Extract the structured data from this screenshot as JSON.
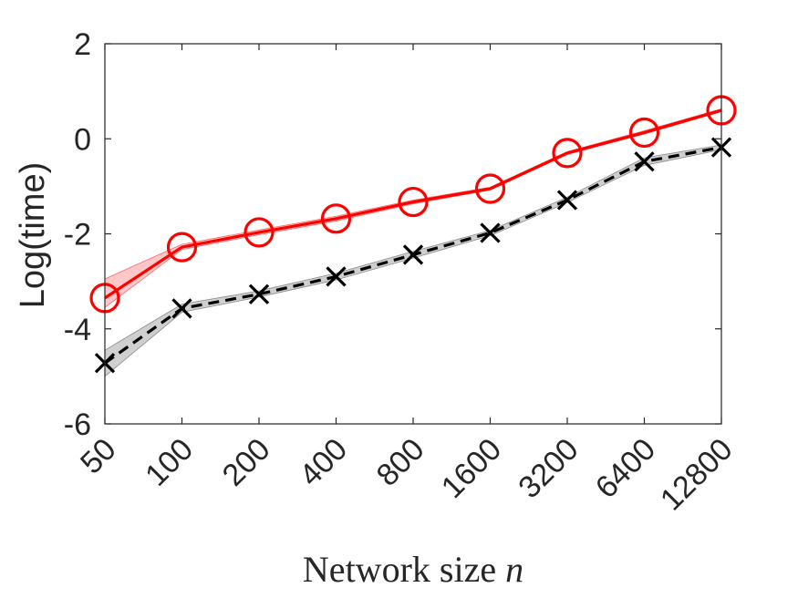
{
  "chart_data": {
    "type": "line",
    "categories": [
      "50",
      "100",
      "200",
      "400",
      "800",
      "1600",
      "3200",
      "6400",
      "12800"
    ],
    "xlabel": "Network size",
    "xlabel_var": "n",
    "ylabel": "Log(time)",
    "ylim": [
      -6,
      2
    ],
    "yticks": [
      "2",
      "0",
      "-2",
      "-4",
      "-6"
    ],
    "grid": false,
    "legend": "none",
    "series": [
      {
        "values": [
          -3.35,
          -2.28,
          -1.97,
          -1.68,
          -1.33,
          -1.05,
          -0.3,
          0.13,
          0.6
        ],
        "band_low": [
          -3.55,
          -2.33,
          -2.02,
          -1.73,
          -1.37,
          -1.08,
          -0.33,
          0.1,
          0.57
        ],
        "band_high": [
          -2.95,
          -2.22,
          -1.92,
          -1.63,
          -1.29,
          -1.02,
          -0.27,
          0.17,
          0.63
        ],
        "color": "#ff0000",
        "band_color": "#ff9999",
        "marker": "circle",
        "line_style": "solid"
      },
      {
        "values": [
          -4.72,
          -3.57,
          -3.27,
          -2.9,
          -2.44,
          -1.98,
          -1.29,
          -0.48,
          -0.18
        ],
        "band_low": [
          -5.0,
          -3.65,
          -3.33,
          -2.97,
          -2.51,
          -2.04,
          -1.34,
          -0.56,
          -0.23
        ],
        "band_high": [
          -4.45,
          -3.48,
          -3.2,
          -2.83,
          -2.37,
          -1.93,
          -1.23,
          -0.4,
          -0.13
        ],
        "color": "#000000",
        "band_color": "#bfbfbf",
        "marker": "x",
        "line_style": "dashed"
      }
    ]
  }
}
